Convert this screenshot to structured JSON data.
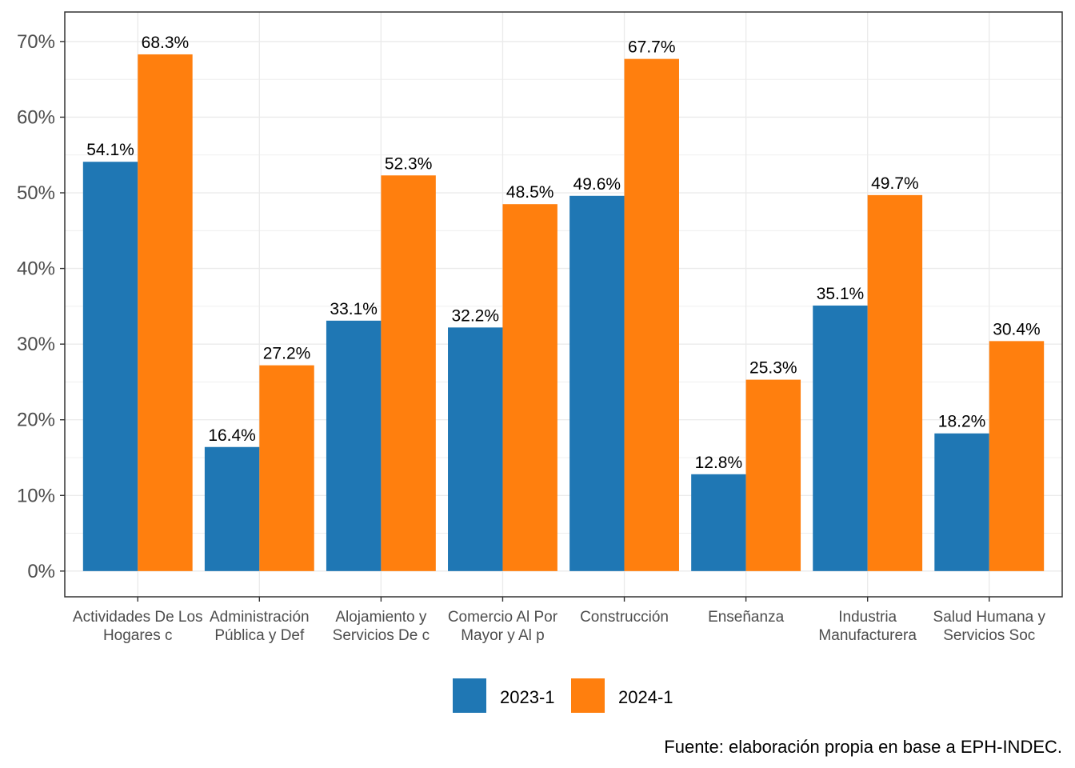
{
  "chart_data": {
    "type": "bar",
    "categories": [
      [
        "Actividades De Los",
        "Hogares c"
      ],
      [
        "Administración",
        "Pública y Def"
      ],
      [
        "Alojamiento y",
        "Servicios De c"
      ],
      [
        "Comercio Al Por",
        "Mayor y Al p"
      ],
      [
        "Construcción"
      ],
      [
        "Enseñanza"
      ],
      [
        "Industria",
        "Manufacturera"
      ],
      [
        "Salud Humana y",
        "Servicios Soc"
      ]
    ],
    "series": [
      {
        "name": "2023-1",
        "color": "#1f77b4",
        "values": [
          54.1,
          16.4,
          33.1,
          32.2,
          49.6,
          12.8,
          35.1,
          18.2
        ],
        "labels": [
          "54.1%",
          "16.4%",
          "33.1%",
          "32.2%",
          "49.6%",
          "12.8%",
          "35.1%",
          "18.2%"
        ]
      },
      {
        "name": "2024-1",
        "color": "#ff7f0e",
        "values": [
          68.3,
          27.2,
          52.3,
          48.5,
          67.7,
          25.3,
          49.7,
          30.4
        ],
        "labels": [
          "68.3%",
          "27.2%",
          "52.3%",
          "48.5%",
          "67.7%",
          "25.3%",
          "49.7%",
          "30.4%"
        ]
      }
    ],
    "yticks": [
      0,
      10,
      20,
      30,
      40,
      50,
      60,
      70
    ],
    "ytick_labels": [
      "0%",
      "10%",
      "20%",
      "30%",
      "40%",
      "50%",
      "60%",
      "70%"
    ],
    "ylim": [
      -3.4,
      73.9
    ],
    "grid": true,
    "legend_position": "bottom",
    "caption": "Fuente: elaboración propia en base a EPH-INDEC."
  }
}
